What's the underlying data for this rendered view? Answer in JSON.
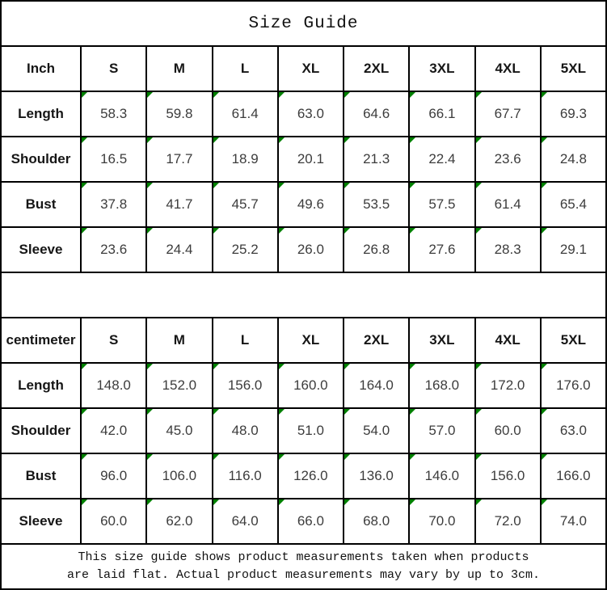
{
  "title": "Size Guide",
  "colors": {
    "border": "#000000",
    "marker": "#008000",
    "text": "#000000",
    "background": "#ffffff"
  },
  "tables": [
    {
      "unit_label": "Inch",
      "sizes": [
        "S",
        "M",
        "L",
        "XL",
        "2XL",
        "3XL",
        "4XL",
        "5XL"
      ],
      "rows": [
        {
          "label": "Length",
          "values": [
            "58.3",
            "59.8",
            "61.4",
            "63.0",
            "64.6",
            "66.1",
            "67.7",
            "69.3"
          ]
        },
        {
          "label": "Shoulder",
          "values": [
            "16.5",
            "17.7",
            "18.9",
            "20.1",
            "21.3",
            "22.4",
            "23.6",
            "24.8"
          ]
        },
        {
          "label": "Bust",
          "values": [
            "37.8",
            "41.7",
            "45.7",
            "49.6",
            "53.5",
            "57.5",
            "61.4",
            "65.4"
          ]
        },
        {
          "label": "Sleeve",
          "values": [
            "23.6",
            "24.4",
            "25.2",
            "26.0",
            "26.8",
            "27.6",
            "28.3",
            "29.1"
          ]
        }
      ]
    },
    {
      "unit_label": "centimeter",
      "sizes": [
        "S",
        "M",
        "L",
        "XL",
        "2XL",
        "3XL",
        "4XL",
        "5XL"
      ],
      "rows": [
        {
          "label": "Length",
          "values": [
            "148.0",
            "152.0",
            "156.0",
            "160.0",
            "164.0",
            "168.0",
            "172.0",
            "176.0"
          ]
        },
        {
          "label": "Shoulder",
          "values": [
            "42.0",
            "45.0",
            "48.0",
            "51.0",
            "54.0",
            "57.0",
            "60.0",
            "63.0"
          ]
        },
        {
          "label": "Bust",
          "values": [
            "96.0",
            "106.0",
            "116.0",
            "126.0",
            "136.0",
            "146.0",
            "156.0",
            "166.0"
          ]
        },
        {
          "label": "Sleeve",
          "values": [
            "60.0",
            "62.0",
            "64.0",
            "66.0",
            "68.0",
            "70.0",
            "72.0",
            "74.0"
          ]
        }
      ]
    }
  ],
  "footer": {
    "line1": "This size guide shows product measurements taken when products",
    "line2": "are laid flat. Actual product measurements may vary by up to 3cm."
  },
  "chart_data": [
    {
      "type": "table",
      "title": "Size Guide",
      "unit": "Inch",
      "columns": [
        "Inch",
        "S",
        "M",
        "L",
        "XL",
        "2XL",
        "3XL",
        "4XL",
        "5XL"
      ],
      "rows": [
        [
          "Length",
          58.3,
          59.8,
          61.4,
          63.0,
          64.6,
          66.1,
          67.7,
          69.3
        ],
        [
          "Shoulder",
          16.5,
          17.7,
          18.9,
          20.1,
          21.3,
          22.4,
          23.6,
          24.8
        ],
        [
          "Bust",
          37.8,
          41.7,
          45.7,
          49.6,
          53.5,
          57.5,
          61.4,
          65.4
        ],
        [
          "Sleeve",
          23.6,
          24.4,
          25.2,
          26.0,
          26.8,
          27.6,
          28.3,
          29.1
        ]
      ]
    },
    {
      "type": "table",
      "title": "Size Guide",
      "unit": "centimeter",
      "columns": [
        "centimeter",
        "S",
        "M",
        "L",
        "XL",
        "2XL",
        "3XL",
        "4XL",
        "5XL"
      ],
      "rows": [
        [
          "Length",
          148.0,
          152.0,
          156.0,
          160.0,
          164.0,
          168.0,
          172.0,
          176.0
        ],
        [
          "Shoulder",
          42.0,
          45.0,
          48.0,
          51.0,
          54.0,
          57.0,
          60.0,
          63.0
        ],
        [
          "Bust",
          96.0,
          106.0,
          116.0,
          126.0,
          136.0,
          146.0,
          156.0,
          166.0
        ],
        [
          "Sleeve",
          60.0,
          62.0,
          64.0,
          66.0,
          68.0,
          70.0,
          72.0,
          74.0
        ]
      ]
    }
  ]
}
